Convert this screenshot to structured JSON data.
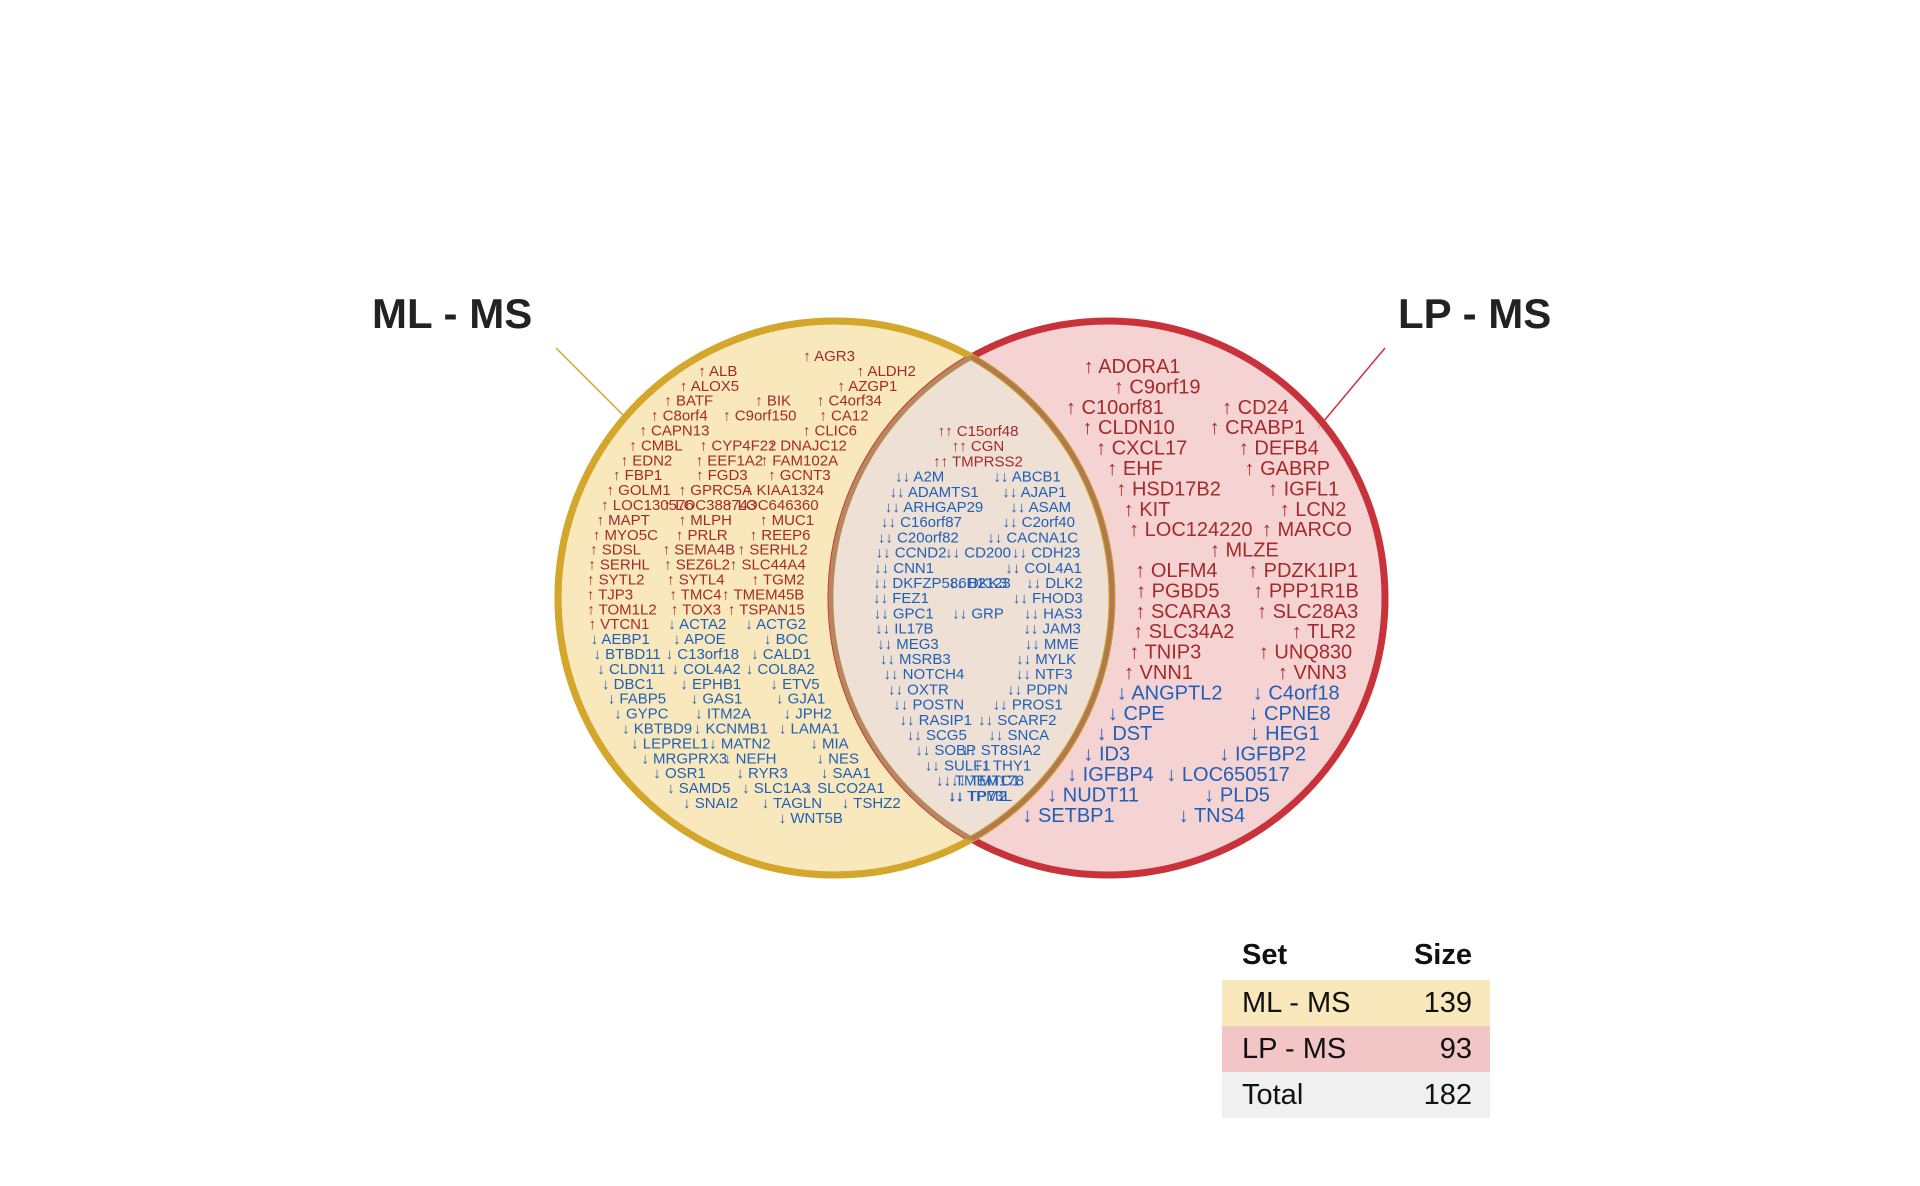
{
  "diagram": {
    "type": "venn",
    "sets": [
      {
        "name": "ML - MS",
        "color": "#D4A72C",
        "fill": "#F8E8BC"
      },
      {
        "name": "LP - MS",
        "color": "#C8323A",
        "fill": "#F2C6C7"
      }
    ],
    "up_color": "#A52A2A",
    "down_color": "#1F5FB8"
  },
  "regions": {
    "ml_only": [
      "↑ AGR3",
      "↑ ALB",
      "↑ ALDH2",
      "↑ ALOX5",
      "↑ AZGP1",
      "↑ BATF",
      "↑ BIK",
      "↑ C4orf34",
      "↑ C8orf4",
      "↑ C9orf150",
      "↑ CA12",
      "↑ CAPN13",
      "↑ CLIC6",
      "↑ CMBL",
      "↑ CYP4F22",
      "↑ DNAJC12",
      "↑ EDN2",
      "↑ EEF1A2",
      "↑ FAM102A",
      "↑ FBP1",
      "↑ FGD3",
      "↑ GCNT3",
      "↑ GOLM1",
      "↑ GPRC5A",
      "↑ KIAA1324",
      "↑ LOC130576",
      "↑ LOC388743",
      "↑ LOC646360",
      "↑ MAPT",
      "↑ MLPH",
      "↑ MUC1",
      "↑ MYO5C",
      "↑ PRLR",
      "↑ REEP6",
      "↑ SDSL",
      "↑ SEMA4B",
      "↑ SERHL2",
      "↑ SERHL",
      "↑ SEZ6L2",
      "↑ SLC44A4",
      "↑ SYTL2",
      "↑ SYTL4",
      "↑ TGM2",
      "↑ TJP3",
      "↑ TMC4",
      "↑ TMEM45B",
      "↑ TOM1L2",
      "↑ TOX3",
      "↑ TSPAN15",
      "↑ VTCN1",
      "↓ ACTA2",
      "↓ ACTG2",
      "↓ AEBP1",
      "↓ APOE",
      "↓ BOC",
      "↓ BTBD11",
      "↓ C13orf18",
      "↓ CALD1",
      "↓ CLDN11",
      "↓ COL4A2",
      "↓ COL8A2",
      "↓ DBC1",
      "↓ EPHB1",
      "↓ ETV5",
      "↓ FABP5",
      "↓ GAS1",
      "↓ GJA1",
      "↓ GYPC",
      "↓ ITM2A",
      "↓ JPH2",
      "↓ KBTBD9",
      "↓ KCNMB1",
      "↓ LAMA1",
      "↓ LEPREL1",
      "↓ MATN2",
      "↓ MIA",
      "↓ MRGPRX3",
      "↓ NEFH",
      "↓ NES",
      "↓ OSR1",
      "↓ RYR3",
      "↓ SAA1",
      "↓ SAMD5",
      "↓ SLC1A3",
      "↓ SLCO2A1",
      "↓ SNAI2",
      "↓ TAGLN",
      "↓ TSHZ2",
      "↓ WNT5B"
    ],
    "overlap": [
      "↑↑ C15orf48",
      "↑↑ CGN",
      "↑↑ TMPRSS2",
      "↓↓ A2M",
      "↓↓ ABCB1",
      "↓↓ ADAMTS1",
      "↓↓ AJAP1",
      "↓↓ ARHGAP29",
      "↓↓ ASAM",
      "↓↓ C16orf87",
      "↓↓ C2orf40",
      "↓↓ C20orf82",
      "↓↓ CACNA1C",
      "↓↓ CCND2",
      "↓↓ CD200",
      "↓↓ CDH23",
      "↓↓ CNN1",
      "↓↓ COL4A1",
      "↓↓ DKFZP586H2123",
      "↓↓ DKK3",
      "↓↓ DLK2",
      "↓↓ FEZ1",
      "↓↓ FHOD3",
      "↓↓ GPC1",
      "↓↓ GRP",
      "↓↓ HAS3",
      "↓↓ IL17B",
      "↓↓ JAM3",
      "↓↓ MEG3",
      "↓↓ MME",
      "↓↓ MSRB3",
      "↓↓ MYLK",
      "↓↓ NOTCH4",
      "↓↓ NTF3",
      "↓↓ OXTR",
      "↓↓ PDPN",
      "↓↓ POSTN",
      "↓↓ PROS1",
      "↓↓ RASIP1",
      "↓↓ SCARF2",
      "↓↓ SCG5",
      "↓↓ SNCA",
      "↓↓ SOBP",
      "↓↓ ST8SIA2",
      "↓↓ SULF1",
      "↓↓ THY1",
      "↓↓ TMEM178",
      "↓↓ TMTC1",
      "↓↓ TP73L",
      "↓↓ TPM2"
    ],
    "lp_only": [
      "↑ ADORA1",
      "↑ C9orf19",
      "↑ C10orf81",
      "↑ CD24",
      "↑ CLDN10",
      "↑ CRABP1",
      "↑ CXCL17",
      "↑ DEFB4",
      "↑ EHF",
      "↑ GABRP",
      "↑ HSD17B2",
      "↑ IGFL1",
      "↑ KIT",
      "↑ LCN2",
      "↑ LOC124220",
      "↑ MARCO",
      "↑ MLZE",
      "↑ OLFM4",
      "↑ PDZK1IP1",
      "↑ PGBD5",
      "↑ PPP1R1B",
      "↑ SCARA3",
      "↑ SLC28A3",
      "↑ SLC34A2",
      "↑ TLR2",
      "↑ TNIP3",
      "↑ UNQ830",
      "↑ VNN1",
      "↑ VNN3",
      "↓ ANGPTL2",
      "↓ C4orf18",
      "↓ CPE",
      "↓ CPNE8",
      "↓ DST",
      "↓ HEG1",
      "↓ ID3",
      "↓ IGFBP2",
      "↓ IGFBP4",
      "↓ LOC650517",
      "↓ NUDT11",
      "↓ PLD5",
      "↓ SETBP1",
      "↓ TNS4"
    ]
  },
  "legend": {
    "header": {
      "set": "Set",
      "size": "Size"
    },
    "rows": [
      {
        "set": "ML - MS",
        "size": "139",
        "color": "#F8E8BC"
      },
      {
        "set": "LP - MS",
        "size": "93",
        "color": "#F2C6C7"
      },
      {
        "set": "Total",
        "size": "182",
        "color": "#F0F0F0"
      }
    ]
  }
}
